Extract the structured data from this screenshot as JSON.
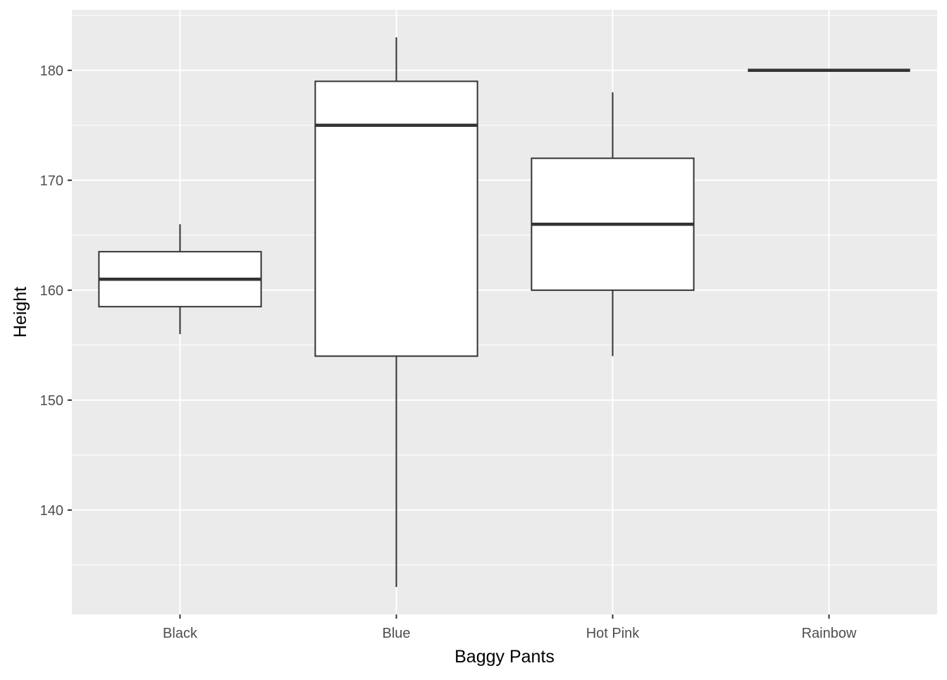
{
  "chart_data": {
    "type": "boxplot",
    "title": "",
    "xlabel": "Baggy Pants",
    "ylabel": "Height",
    "categories": [
      "Black",
      "Blue",
      "Hot Pink",
      "Rainbow"
    ],
    "boxes": [
      {
        "category": "Black",
        "whisker_low": 156,
        "q1": 158.5,
        "median": 161,
        "q3": 163.5,
        "whisker_high": 166
      },
      {
        "category": "Blue",
        "whisker_low": 133,
        "q1": 154,
        "median": 175,
        "q3": 179,
        "whisker_high": 183
      },
      {
        "category": "Hot Pink",
        "whisker_low": 154,
        "q1": 160,
        "median": 166,
        "q3": 172,
        "whisker_high": 178
      },
      {
        "category": "Rainbow",
        "whisker_low": 180,
        "q1": 180,
        "median": 180,
        "q3": 180,
        "whisker_high": 180
      }
    ],
    "y_ticks": [
      "140",
      "150",
      "160",
      "170",
      "180"
    ],
    "ylim": [
      130.5,
      185.5
    ],
    "grid": true,
    "colors": {
      "panel_background": "#ebebeb",
      "grid_line": "#ffffff",
      "box_fill": "#ffffff",
      "box_line": "#333333",
      "tick_text": "#4d4d4d",
      "axis_title": "#000000"
    }
  }
}
